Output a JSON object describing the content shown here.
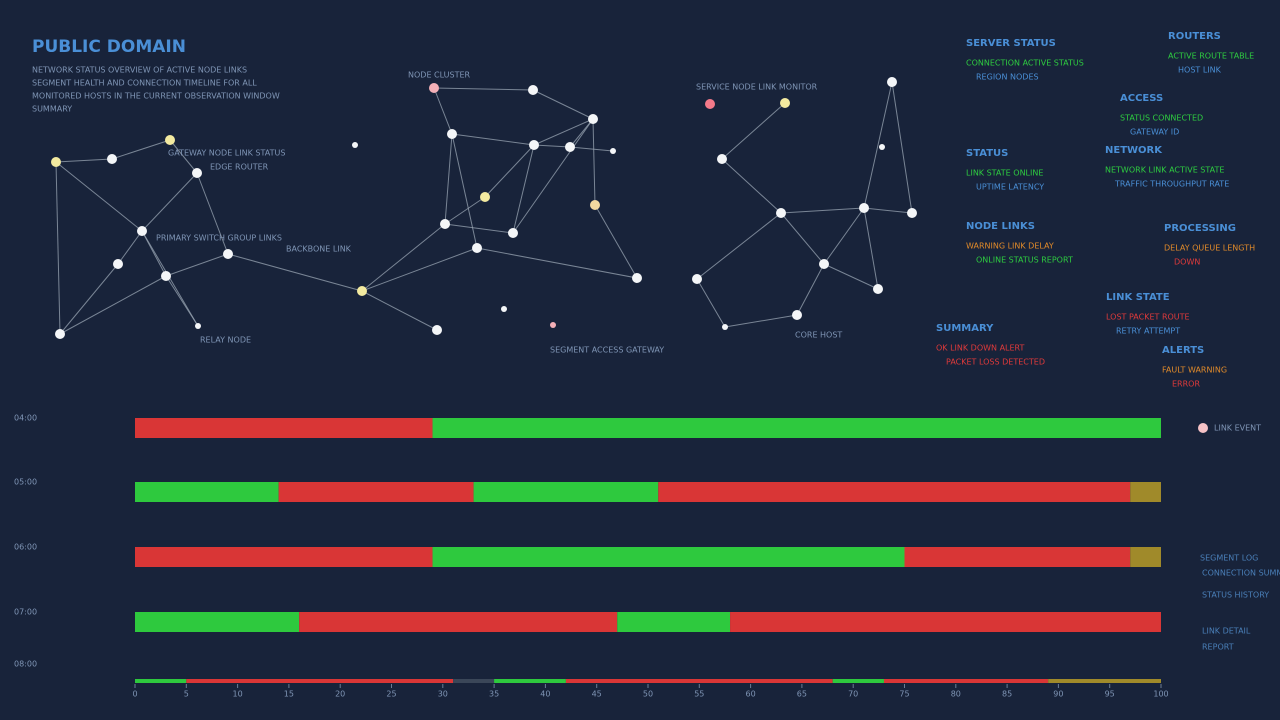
{
  "header": {
    "title": "PUBLIC DOMAIN",
    "description": [
      "NETWORK STATUS OVERVIEW OF ACTIVE NODE LINKS",
      "SEGMENT HEALTH AND CONNECTION TIMELINE FOR ALL",
      "MONITORED HOSTS IN THE CURRENT OBSERVATION WINDOW",
      "SUMMARY"
    ]
  },
  "network": {
    "labels": [
      "NODE CLUSTER",
      "GATEWAY NODE LINK STATUS",
      "EDGE ROUTER",
      "PRIMARY SWITCH GROUP LINKS",
      "BACKBONE LINK",
      "RELAY NODE",
      "SEGMENT ACCESS GATEWAY",
      "SERVICE NODE LINK MONITOR",
      "CORE HOST"
    ]
  },
  "right_panel": {
    "groups": [
      {
        "title": "SERVER STATUS",
        "lines": [
          {
            "text": "CONNECTION ACTIVE STATUS",
            "color": "#2ecc40"
          },
          {
            "text": "REGION NODES",
            "color": "#4a8fd6"
          }
        ]
      },
      {
        "title": "STATUS",
        "lines": [
          {
            "text": "LINK STATE ONLINE",
            "color": "#2ecc40"
          },
          {
            "text": "UPTIME LATENCY",
            "color": "#4a8fd6"
          }
        ]
      },
      {
        "title": "NODE LINKS",
        "lines": [
          {
            "text": "WARNING LINK DELAY",
            "color": "#e08a2a"
          },
          {
            "text": "ONLINE STATUS REPORT",
            "color": "#2ecc40"
          }
        ]
      },
      {
        "title": "SUMMARY",
        "lines": [
          {
            "text": "OK LINK DOWN ALERT",
            "color": "#e03a3a"
          },
          {
            "text": "PACKET LOSS DETECTED",
            "color": "#e03a3a"
          }
        ]
      }
    ],
    "groups_b": [
      {
        "title": "ROUTERS",
        "lines": [
          {
            "text": "ACTIVE ROUTE TABLE",
            "color": "#2ecc40"
          },
          {
            "text": "HOST LINK",
            "color": "#4a8fd6"
          }
        ]
      },
      {
        "title": "ACCESS",
        "lines": [
          {
            "text": "STATUS CONNECTED",
            "color": "#2ecc40"
          },
          {
            "text": "GATEWAY ID",
            "color": "#4a8fd6"
          }
        ]
      },
      {
        "title": "NETWORK",
        "lines": [
          {
            "text": "NETWORK LINK ACTIVE STATE",
            "color": "#2ecc40"
          },
          {
            "text": "TRAFFIC THROUGHPUT RATE",
            "color": "#4a8fd6"
          }
        ]
      },
      {
        "title": "PROCESSING",
        "lines": [
          {
            "text": "DELAY QUEUE LENGTH",
            "color": "#e08a2a"
          },
          {
            "text": "DOWN",
            "color": "#e03a3a"
          }
        ]
      },
      {
        "title": "LINK STATE",
        "lines": [
          {
            "text": "LOST PACKET ROUTE",
            "color": "#e03a3a"
          },
          {
            "text": "RETRY ATTEMPT",
            "color": "#4a8fd6"
          }
        ]
      },
      {
        "title": "ALERTS",
        "lines": [
          {
            "text": "FAULT WARNING",
            "color": "#e08a2a"
          },
          {
            "text": "ERROR",
            "color": "#e03a3a"
          }
        ]
      }
    ]
  },
  "timeline": {
    "legend": "LINK EVENT",
    "notes": [
      "SEGMENT LOG",
      "CONNECTION SUMMARY",
      "STATUS HISTORY",
      "LINK DETAIL",
      "REPORT"
    ],
    "xlim": [
      0,
      100
    ],
    "xticks": [
      0,
      5,
      10,
      15,
      20,
      25,
      30,
      35,
      40,
      45,
      50,
      55,
      60,
      65,
      70,
      75,
      80,
      85,
      90,
      95,
      100
    ],
    "rows": [
      {
        "label": "04:00",
        "segments": [
          {
            "value": 29,
            "color": "#d93636"
          },
          {
            "value": 71,
            "color": "#2ec93e"
          }
        ]
      },
      {
        "label": "05:00",
        "segments": [
          {
            "value": 14,
            "color": "#2ec93e"
          },
          {
            "value": 19,
            "color": "#d93636"
          },
          {
            "value": 18,
            "color": "#2ec93e"
          },
          {
            "value": 46,
            "color": "#d93636"
          },
          {
            "value": 3,
            "color": "#a08a2a"
          }
        ]
      },
      {
        "label": "06:00",
        "segments": [
          {
            "value": 29,
            "color": "#d93636"
          },
          {
            "value": 46,
            "color": "#2ec93e"
          },
          {
            "value": 22,
            "color": "#d93636"
          },
          {
            "value": 3,
            "color": "#a08a2a"
          }
        ]
      },
      {
        "label": "07:00",
        "segments": [
          {
            "value": 16,
            "color": "#2ec93e"
          },
          {
            "value": 31,
            "color": "#d93636"
          },
          {
            "value": 11,
            "color": "#2ec93e"
          },
          {
            "value": 42,
            "color": "#d93636"
          }
        ]
      },
      {
        "label": "08:00",
        "segments": [
          {
            "value": 5,
            "color": "#2ec93e"
          },
          {
            "value": 26,
            "color": "#d93636"
          },
          {
            "value": 4,
            "color": "#3a4658"
          },
          {
            "value": 7,
            "color": "#2ec93e"
          },
          {
            "value": 26,
            "color": "#d93636"
          },
          {
            "value": 5,
            "color": "#2ec93e"
          },
          {
            "value": 16,
            "color": "#d93636"
          },
          {
            "value": 11,
            "color": "#a08a2a"
          }
        ]
      }
    ]
  }
}
